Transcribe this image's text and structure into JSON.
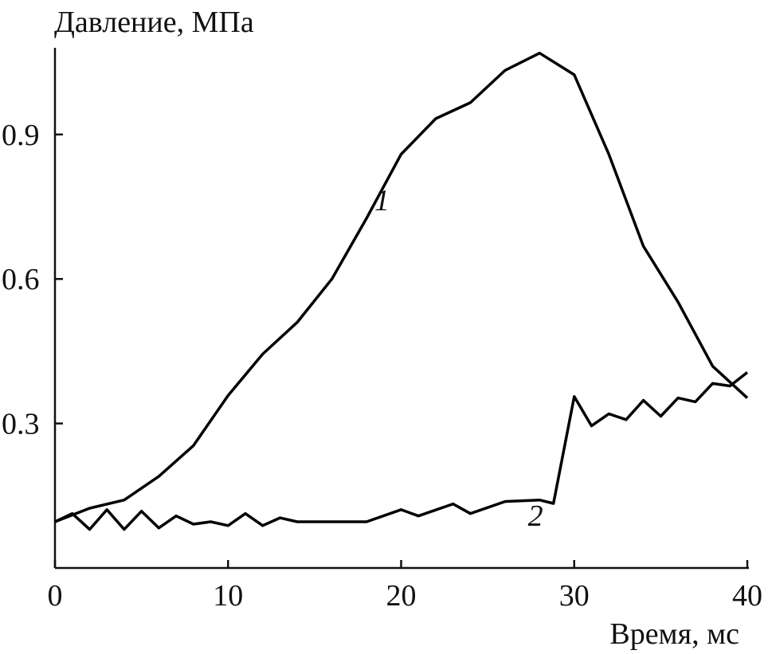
{
  "chart_data": {
    "type": "line",
    "y_label": "Давление, МПа",
    "x_label": "Время, мс",
    "xlim": [
      0,
      40
    ],
    "ylim": [
      0,
      1.08
    ],
    "xticks": [
      0,
      10,
      20,
      30,
      40
    ],
    "yticks": [
      0.3,
      0.6,
      0.9
    ],
    "grid": false,
    "series": [
      {
        "name": "1",
        "color": "#000000",
        "x": [
          0,
          2,
          4,
          6,
          8,
          10,
          12,
          14,
          16,
          18,
          20,
          22,
          24,
          26,
          28,
          30,
          32,
          34,
          36,
          38,
          40
        ],
        "values": [
          0.096,
          0.124,
          0.141,
          0.19,
          0.254,
          0.358,
          0.444,
          0.51,
          0.6,
          0.726,
          0.859,
          0.933,
          0.966,
          1.033,
          1.069,
          1.024,
          0.859,
          0.668,
          0.552,
          0.419,
          0.353
        ]
      },
      {
        "name": "2",
        "color": "#000000",
        "x": [
          0,
          1,
          2,
          3,
          4,
          5,
          6,
          7,
          8,
          9,
          10,
          11,
          12,
          13,
          14,
          16,
          18,
          20,
          21,
          23,
          24,
          26,
          28,
          28.8,
          30,
          31,
          32,
          33,
          34,
          35,
          36,
          37,
          38,
          39,
          40
        ],
        "values": [
          0.096,
          0.113,
          0.08,
          0.121,
          0.08,
          0.118,
          0.083,
          0.108,
          0.091,
          0.096,
          0.088,
          0.113,
          0.088,
          0.104,
          0.096,
          0.096,
          0.096,
          0.121,
          0.108,
          0.133,
          0.113,
          0.138,
          0.141,
          0.134,
          0.356,
          0.295,
          0.32,
          0.308,
          0.348,
          0.315,
          0.353,
          0.345,
          0.383,
          0.378,
          0.406
        ]
      }
    ]
  }
}
